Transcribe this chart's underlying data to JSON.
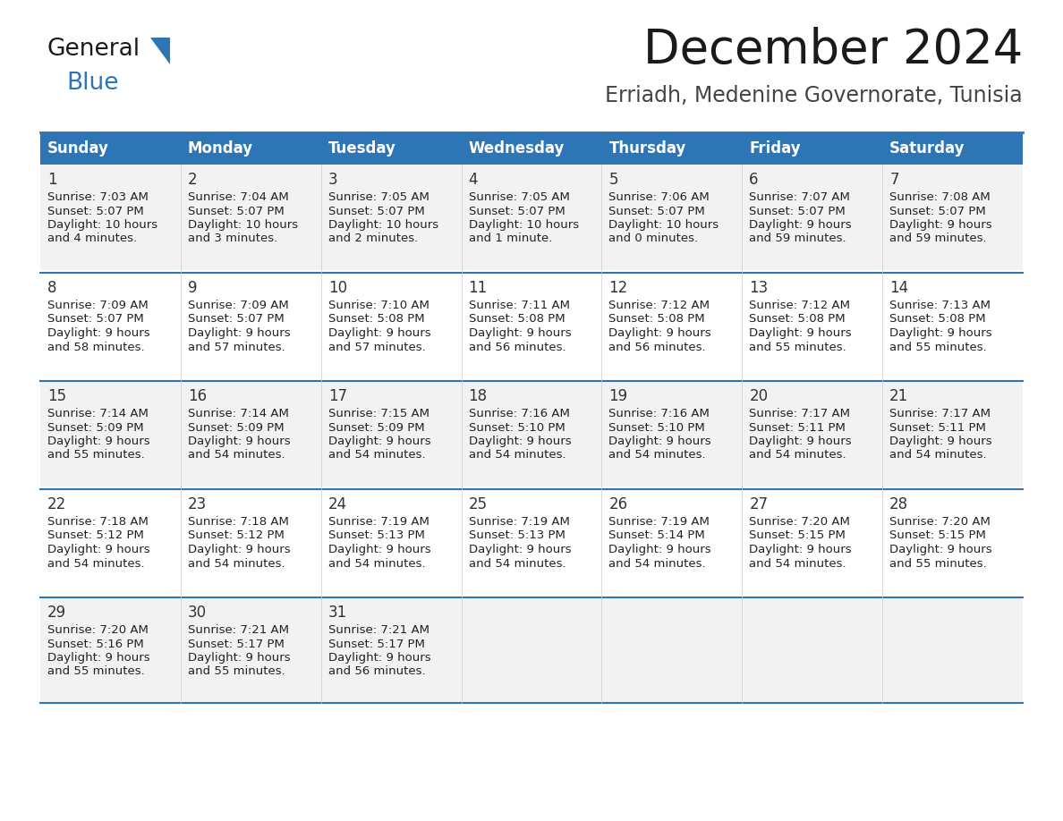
{
  "title": "December 2024",
  "subtitle": "Erriadh, Medenine Governorate, Tunisia",
  "days_of_week": [
    "Sunday",
    "Monday",
    "Tuesday",
    "Wednesday",
    "Thursday",
    "Friday",
    "Saturday"
  ],
  "header_bg": "#2E75B6",
  "header_text_color": "#FFFFFF",
  "row_bg_even": "#F2F2F2",
  "row_bg_odd": "#FFFFFF",
  "cell_text_color": "#222222",
  "day_number_color": "#333333",
  "separator_color": "#2E75B6",
  "calendar_data": [
    [
      {
        "day": 1,
        "sunrise": "7:03 AM",
        "sunset": "5:07 PM",
        "daylight": "10 hours",
        "daylight2": "and 4 minutes."
      },
      {
        "day": 2,
        "sunrise": "7:04 AM",
        "sunset": "5:07 PM",
        "daylight": "10 hours",
        "daylight2": "and 3 minutes."
      },
      {
        "day": 3,
        "sunrise": "7:05 AM",
        "sunset": "5:07 PM",
        "daylight": "10 hours",
        "daylight2": "and 2 minutes."
      },
      {
        "day": 4,
        "sunrise": "7:05 AM",
        "sunset": "5:07 PM",
        "daylight": "10 hours",
        "daylight2": "and 1 minute."
      },
      {
        "day": 5,
        "sunrise": "7:06 AM",
        "sunset": "5:07 PM",
        "daylight": "10 hours",
        "daylight2": "and 0 minutes."
      },
      {
        "day": 6,
        "sunrise": "7:07 AM",
        "sunset": "5:07 PM",
        "daylight": "9 hours",
        "daylight2": "and 59 minutes."
      },
      {
        "day": 7,
        "sunrise": "7:08 AM",
        "sunset": "5:07 PM",
        "daylight": "9 hours",
        "daylight2": "and 59 minutes."
      }
    ],
    [
      {
        "day": 8,
        "sunrise": "7:09 AM",
        "sunset": "5:07 PM",
        "daylight": "9 hours",
        "daylight2": "and 58 minutes."
      },
      {
        "day": 9,
        "sunrise": "7:09 AM",
        "sunset": "5:07 PM",
        "daylight": "9 hours",
        "daylight2": "and 57 minutes."
      },
      {
        "day": 10,
        "sunrise": "7:10 AM",
        "sunset": "5:08 PM",
        "daylight": "9 hours",
        "daylight2": "and 57 minutes."
      },
      {
        "day": 11,
        "sunrise": "7:11 AM",
        "sunset": "5:08 PM",
        "daylight": "9 hours",
        "daylight2": "and 56 minutes."
      },
      {
        "day": 12,
        "sunrise": "7:12 AM",
        "sunset": "5:08 PM",
        "daylight": "9 hours",
        "daylight2": "and 56 minutes."
      },
      {
        "day": 13,
        "sunrise": "7:12 AM",
        "sunset": "5:08 PM",
        "daylight": "9 hours",
        "daylight2": "and 55 minutes."
      },
      {
        "day": 14,
        "sunrise": "7:13 AM",
        "sunset": "5:08 PM",
        "daylight": "9 hours",
        "daylight2": "and 55 minutes."
      }
    ],
    [
      {
        "day": 15,
        "sunrise": "7:14 AM",
        "sunset": "5:09 PM",
        "daylight": "9 hours",
        "daylight2": "and 55 minutes."
      },
      {
        "day": 16,
        "sunrise": "7:14 AM",
        "sunset": "5:09 PM",
        "daylight": "9 hours",
        "daylight2": "and 54 minutes."
      },
      {
        "day": 17,
        "sunrise": "7:15 AM",
        "sunset": "5:09 PM",
        "daylight": "9 hours",
        "daylight2": "and 54 minutes."
      },
      {
        "day": 18,
        "sunrise": "7:16 AM",
        "sunset": "5:10 PM",
        "daylight": "9 hours",
        "daylight2": "and 54 minutes."
      },
      {
        "day": 19,
        "sunrise": "7:16 AM",
        "sunset": "5:10 PM",
        "daylight": "9 hours",
        "daylight2": "and 54 minutes."
      },
      {
        "day": 20,
        "sunrise": "7:17 AM",
        "sunset": "5:11 PM",
        "daylight": "9 hours",
        "daylight2": "and 54 minutes."
      },
      {
        "day": 21,
        "sunrise": "7:17 AM",
        "sunset": "5:11 PM",
        "daylight": "9 hours",
        "daylight2": "and 54 minutes."
      }
    ],
    [
      {
        "day": 22,
        "sunrise": "7:18 AM",
        "sunset": "5:12 PM",
        "daylight": "9 hours",
        "daylight2": "and 54 minutes."
      },
      {
        "day": 23,
        "sunrise": "7:18 AM",
        "sunset": "5:12 PM",
        "daylight": "9 hours",
        "daylight2": "and 54 minutes."
      },
      {
        "day": 24,
        "sunrise": "7:19 AM",
        "sunset": "5:13 PM",
        "daylight": "9 hours",
        "daylight2": "and 54 minutes."
      },
      {
        "day": 25,
        "sunrise": "7:19 AM",
        "sunset": "5:13 PM",
        "daylight": "9 hours",
        "daylight2": "and 54 minutes."
      },
      {
        "day": 26,
        "sunrise": "7:19 AM",
        "sunset": "5:14 PM",
        "daylight": "9 hours",
        "daylight2": "and 54 minutes."
      },
      {
        "day": 27,
        "sunrise": "7:20 AM",
        "sunset": "5:15 PM",
        "daylight": "9 hours",
        "daylight2": "and 54 minutes."
      },
      {
        "day": 28,
        "sunrise": "7:20 AM",
        "sunset": "5:15 PM",
        "daylight": "9 hours",
        "daylight2": "and 55 minutes."
      }
    ],
    [
      {
        "day": 29,
        "sunrise": "7:20 AM",
        "sunset": "5:16 PM",
        "daylight": "9 hours",
        "daylight2": "and 55 minutes."
      },
      {
        "day": 30,
        "sunrise": "7:21 AM",
        "sunset": "5:17 PM",
        "daylight": "9 hours",
        "daylight2": "and 55 minutes."
      },
      {
        "day": 31,
        "sunrise": "7:21 AM",
        "sunset": "5:17 PM",
        "daylight": "9 hours",
        "daylight2": "and 56 minutes."
      },
      null,
      null,
      null,
      null
    ]
  ],
  "title_fontsize": 38,
  "subtitle_fontsize": 17,
  "header_fontsize": 12,
  "day_number_fontsize": 12,
  "cell_text_fontsize": 9.5
}
